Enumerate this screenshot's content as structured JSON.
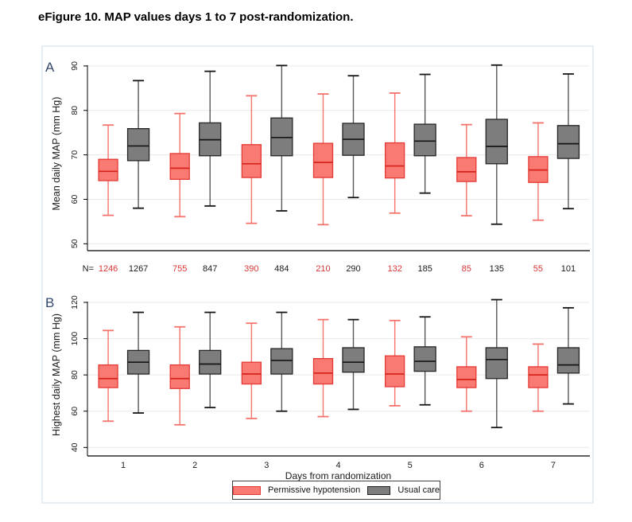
{
  "page": {
    "title": "eFigure 10. MAP values days 1 to 7 post-randomization."
  },
  "legend": {
    "items": [
      {
        "label": "Permissive hypotension",
        "fill": "#f87a72",
        "stroke": "#e53a34"
      },
      {
        "label": "Usual care",
        "fill": "#7d7d7d",
        "stroke": "#1f1f1f"
      }
    ]
  },
  "colors": {
    "panel_letter": "#35496e",
    "grid": "#e9e9e9",
    "axis": "#000000",
    "n_red": "#d93636",
    "n_black": "#1a1a1a",
    "figure_border": "#e7eef3"
  },
  "chart_data": [
    {
      "type": "box",
      "panel": "A",
      "ylabel": "Mean daily MAP (mm Hg)",
      "yticks": [
        50,
        60,
        70,
        80,
        90
      ],
      "ylim": [
        48.4,
        92.3
      ],
      "x": [
        1,
        2,
        3,
        4,
        5,
        6,
        7
      ],
      "grid": true,
      "box_stats_order": [
        "min",
        "q1",
        "median",
        "q3",
        "max"
      ],
      "series": [
        {
          "name": "Permissive hypotension",
          "fill": "#f87a72",
          "stroke": "#e53a34",
          "whisker": "#f4736c",
          "cap": "#f4736c",
          "median": "#d6241d",
          "boxes": [
            [
              56.4,
              64.2,
              66.3,
              69.0,
              76.7
            ],
            [
              56.1,
              64.5,
              67.0,
              70.3,
              79.3
            ],
            [
              54.6,
              64.9,
              68.0,
              72.3,
              83.3
            ],
            [
              54.3,
              64.9,
              68.3,
              72.6,
              83.7
            ],
            [
              56.9,
              64.8,
              67.5,
              72.7,
              83.9
            ],
            [
              56.3,
              64.0,
              66.2,
              69.4,
              76.8
            ],
            [
              55.3,
              63.8,
              66.6,
              69.6,
              77.2
            ]
          ]
        },
        {
          "name": "Usual care",
          "fill": "#7d7d7d",
          "stroke": "#262626",
          "whisker": "#575757",
          "cap": "#151515",
          "median": "#151515",
          "boxes": [
            [
              58.0,
              68.7,
              72.0,
              75.9,
              86.7
            ],
            [
              58.5,
              69.8,
              73.4,
              77.2,
              88.8
            ],
            [
              57.4,
              69.8,
              73.9,
              78.3,
              90.1
            ],
            [
              60.4,
              69.9,
              73.5,
              77.1,
              87.8
            ],
            [
              61.4,
              69.8,
              73.1,
              76.9,
              88.1
            ],
            [
              54.4,
              68.0,
              71.9,
              78.0,
              90.2
            ],
            [
              57.9,
              69.2,
              72.5,
              76.6,
              88.2
            ]
          ]
        }
      ],
      "n_row": {
        "label": "N=",
        "pairs": [
          [
            1246,
            1267
          ],
          [
            755,
            847
          ],
          [
            390,
            484
          ],
          [
            210,
            290
          ],
          [
            132,
            185
          ],
          [
            85,
            135
          ],
          [
            55,
            101
          ]
        ]
      }
    },
    {
      "type": "box",
      "panel": "B",
      "ylabel": "Highest daily MAP (mm Hg)",
      "xlabel": "Days from randomization",
      "yticks": [
        40,
        60,
        80,
        100,
        120
      ],
      "ylim": [
        35.3,
        124.4
      ],
      "x": [
        1,
        2,
        3,
        4,
        5,
        6,
        7
      ],
      "xticklabels": [
        "1",
        "2",
        "3",
        "4",
        "5",
        "6",
        "7"
      ],
      "grid": true,
      "box_stats_order": [
        "min",
        "q1",
        "median",
        "q3",
        "max"
      ],
      "series": [
        {
          "name": "Permissive hypotension",
          "fill": "#f87a72",
          "stroke": "#e53a34",
          "whisker": "#f4736c",
          "cap": "#f4736c",
          "median": "#d6241d",
          "boxes": [
            [
              54.5,
              73.0,
              78.0,
              85.5,
              104.5
            ],
            [
              52.5,
              72.5,
              78.0,
              85.5,
              106.5
            ],
            [
              56.0,
              75.0,
              80.5,
              87.0,
              108.5
            ],
            [
              57.0,
              75.0,
              81.0,
              89.0,
              110.5
            ],
            [
              63.0,
              73.5,
              80.5,
              90.5,
              110.0
            ],
            [
              60.0,
              73.0,
              77.5,
              84.5,
              101.0
            ],
            [
              60.0,
              73.0,
              80.0,
              84.5,
              97.0
            ]
          ]
        },
        {
          "name": "Usual care",
          "fill": "#7d7d7d",
          "stroke": "#262626",
          "whisker": "#575757",
          "cap": "#151515",
          "median": "#151515",
          "boxes": [
            [
              59.0,
              80.5,
              87.0,
              93.5,
              114.5
            ],
            [
              62.0,
              80.5,
              86.0,
              93.5,
              114.5
            ],
            [
              60.0,
              80.5,
              88.0,
              94.5,
              114.5
            ],
            [
              61.0,
              81.5,
              87.0,
              95.0,
              110.5
            ],
            [
              63.5,
              82.0,
              87.5,
              95.5,
              112.0
            ],
            [
              51.0,
              78.0,
              88.5,
              95.0,
              121.5
            ],
            [
              64.0,
              81.0,
              85.5,
              95.0,
              117.0
            ]
          ]
        }
      ]
    }
  ]
}
